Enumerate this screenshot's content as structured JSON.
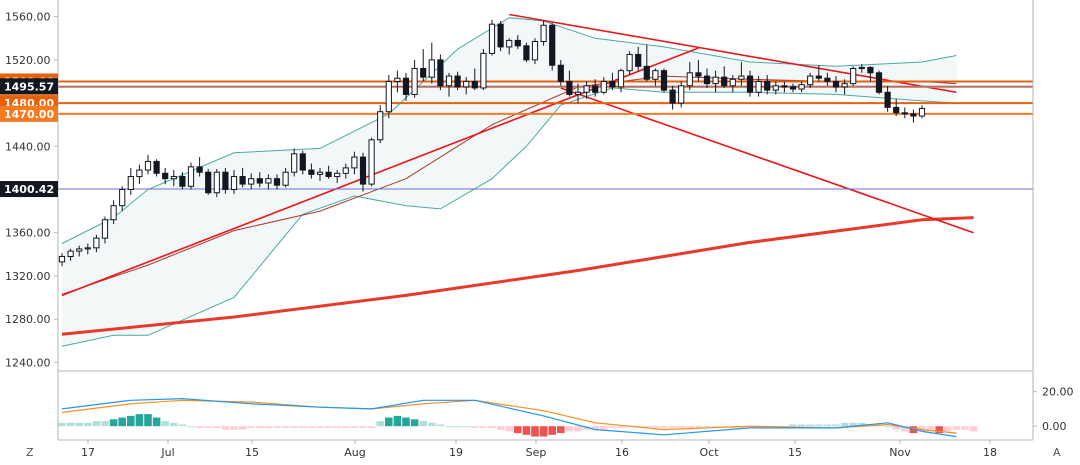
{
  "chart_data": [
    {
      "type": "candlestick",
      "panel": "price",
      "x_ticks": [
        "17",
        "Jul",
        "15",
        "Aug",
        "19",
        "Sep",
        "16",
        "Oct",
        "15",
        "Nov",
        "18"
      ],
      "ylim": [
        1232,
        1568
      ],
      "y_ticks": [
        "1560.00",
        "1520.00",
        "1480.00",
        "1440.00",
        "1400.00",
        "1360.00",
        "1320.00",
        "1280.00",
        "1240.00"
      ],
      "y_tick_values": [
        1560,
        1520,
        1480,
        1440,
        1400,
        1360,
        1320,
        1280,
        1240
      ],
      "candles": [
        {
          "o": 1333,
          "h": 1341,
          "l": 1329,
          "c": 1338
        },
        {
          "o": 1338,
          "h": 1345,
          "l": 1334,
          "c": 1343
        },
        {
          "o": 1343,
          "h": 1348,
          "l": 1338,
          "c": 1345
        },
        {
          "o": 1345,
          "h": 1350,
          "l": 1340,
          "c": 1346
        },
        {
          "o": 1346,
          "h": 1358,
          "l": 1342,
          "c": 1355
        },
        {
          "o": 1355,
          "h": 1375,
          "l": 1350,
          "c": 1372
        },
        {
          "o": 1372,
          "h": 1390,
          "l": 1368,
          "c": 1385
        },
        {
          "o": 1385,
          "h": 1403,
          "l": 1380,
          "c": 1400
        },
        {
          "o": 1400,
          "h": 1420,
          "l": 1395,
          "c": 1412
        },
        {
          "o": 1412,
          "h": 1423,
          "l": 1405,
          "c": 1418
        },
        {
          "o": 1418,
          "h": 1432,
          "l": 1414,
          "c": 1426
        },
        {
          "o": 1426,
          "h": 1428,
          "l": 1412,
          "c": 1415
        },
        {
          "o": 1415,
          "h": 1420,
          "l": 1405,
          "c": 1410
        },
        {
          "o": 1410,
          "h": 1418,
          "l": 1403,
          "c": 1412
        },
        {
          "o": 1412,
          "h": 1416,
          "l": 1400,
          "c": 1403
        },
        {
          "o": 1403,
          "h": 1425,
          "l": 1400,
          "c": 1421
        },
        {
          "o": 1421,
          "h": 1430,
          "l": 1412,
          "c": 1416
        },
        {
          "o": 1416,
          "h": 1419,
          "l": 1395,
          "c": 1397
        },
        {
          "o": 1397,
          "h": 1419,
          "l": 1393,
          "c": 1416
        },
        {
          "o": 1416,
          "h": 1420,
          "l": 1396,
          "c": 1400
        },
        {
          "o": 1400,
          "h": 1418,
          "l": 1396,
          "c": 1412
        },
        {
          "o": 1412,
          "h": 1420,
          "l": 1402,
          "c": 1405
        },
        {
          "o": 1405,
          "h": 1415,
          "l": 1400,
          "c": 1410
        },
        {
          "o": 1410,
          "h": 1416,
          "l": 1402,
          "c": 1406
        },
        {
          "o": 1406,
          "h": 1414,
          "l": 1400,
          "c": 1410
        },
        {
          "o": 1410,
          "h": 1414,
          "l": 1400,
          "c": 1404
        },
        {
          "o": 1404,
          "h": 1420,
          "l": 1402,
          "c": 1416
        },
        {
          "o": 1416,
          "h": 1438,
          "l": 1412,
          "c": 1433
        },
        {
          "o": 1433,
          "h": 1436,
          "l": 1414,
          "c": 1418
        },
        {
          "o": 1418,
          "h": 1424,
          "l": 1410,
          "c": 1414
        },
        {
          "o": 1414,
          "h": 1420,
          "l": 1408,
          "c": 1416
        },
        {
          "o": 1416,
          "h": 1422,
          "l": 1410,
          "c": 1412
        },
        {
          "o": 1412,
          "h": 1418,
          "l": 1406,
          "c": 1415
        },
        {
          "o": 1415,
          "h": 1424,
          "l": 1410,
          "c": 1420
        },
        {
          "o": 1420,
          "h": 1435,
          "l": 1414,
          "c": 1430
        },
        {
          "o": 1430,
          "h": 1434,
          "l": 1398,
          "c": 1405
        },
        {
          "o": 1405,
          "h": 1448,
          "l": 1403,
          "c": 1446
        },
        {
          "o": 1446,
          "h": 1478,
          "l": 1443,
          "c": 1472
        },
        {
          "o": 1472,
          "h": 1506,
          "l": 1466,
          "c": 1500
        },
        {
          "o": 1500,
          "h": 1510,
          "l": 1490,
          "c": 1503
        },
        {
          "o": 1503,
          "h": 1508,
          "l": 1482,
          "c": 1488
        },
        {
          "o": 1488,
          "h": 1520,
          "l": 1485,
          "c": 1512
        },
        {
          "o": 1512,
          "h": 1530,
          "l": 1500,
          "c": 1504
        },
        {
          "o": 1504,
          "h": 1536,
          "l": 1498,
          "c": 1520
        },
        {
          "o": 1520,
          "h": 1525,
          "l": 1492,
          "c": 1496
        },
        {
          "o": 1496,
          "h": 1508,
          "l": 1486,
          "c": 1505
        },
        {
          "o": 1505,
          "h": 1509,
          "l": 1492,
          "c": 1495
        },
        {
          "o": 1495,
          "h": 1504,
          "l": 1488,
          "c": 1500
        },
        {
          "o": 1500,
          "h": 1512,
          "l": 1492,
          "c": 1494
        },
        {
          "o": 1494,
          "h": 1530,
          "l": 1492,
          "c": 1526
        },
        {
          "o": 1526,
          "h": 1557,
          "l": 1524,
          "c": 1553
        },
        {
          "o": 1553,
          "h": 1556,
          "l": 1528,
          "c": 1532
        },
        {
          "o": 1532,
          "h": 1540,
          "l": 1525,
          "c": 1538
        },
        {
          "o": 1538,
          "h": 1543,
          "l": 1530,
          "c": 1533
        },
        {
          "o": 1533,
          "h": 1536,
          "l": 1518,
          "c": 1520
        },
        {
          "o": 1520,
          "h": 1540,
          "l": 1516,
          "c": 1537
        },
        {
          "o": 1537,
          "h": 1556,
          "l": 1533,
          "c": 1552
        },
        {
          "o": 1552,
          "h": 1554,
          "l": 1510,
          "c": 1515
        },
        {
          "o": 1515,
          "h": 1520,
          "l": 1496,
          "c": 1500
        },
        {
          "o": 1500,
          "h": 1510,
          "l": 1486,
          "c": 1488
        },
        {
          "o": 1488,
          "h": 1498,
          "l": 1480,
          "c": 1490
        },
        {
          "o": 1490,
          "h": 1500,
          "l": 1484,
          "c": 1496
        },
        {
          "o": 1496,
          "h": 1502,
          "l": 1486,
          "c": 1490
        },
        {
          "o": 1490,
          "h": 1504,
          "l": 1488,
          "c": 1500
        },
        {
          "o": 1500,
          "h": 1508,
          "l": 1492,
          "c": 1495
        },
        {
          "o": 1495,
          "h": 1512,
          "l": 1490,
          "c": 1510
        },
        {
          "o": 1510,
          "h": 1528,
          "l": 1506,
          "c": 1525
        },
        {
          "o": 1525,
          "h": 1532,
          "l": 1510,
          "c": 1514
        },
        {
          "o": 1514,
          "h": 1534,
          "l": 1500,
          "c": 1502
        },
        {
          "o": 1502,
          "h": 1512,
          "l": 1496,
          "c": 1510
        },
        {
          "o": 1510,
          "h": 1512,
          "l": 1490,
          "c": 1492
        },
        {
          "o": 1492,
          "h": 1496,
          "l": 1474,
          "c": 1480
        },
        {
          "o": 1480,
          "h": 1500,
          "l": 1476,
          "c": 1496
        },
        {
          "o": 1496,
          "h": 1518,
          "l": 1492,
          "c": 1508
        },
        {
          "o": 1508,
          "h": 1520,
          "l": 1500,
          "c": 1505
        },
        {
          "o": 1505,
          "h": 1512,
          "l": 1494,
          "c": 1498
        },
        {
          "o": 1498,
          "h": 1510,
          "l": 1490,
          "c": 1504
        },
        {
          "o": 1504,
          "h": 1514,
          "l": 1494,
          "c": 1496
        },
        {
          "o": 1496,
          "h": 1506,
          "l": 1490,
          "c": 1502
        },
        {
          "o": 1502,
          "h": 1518,
          "l": 1496,
          "c": 1505
        },
        {
          "o": 1505,
          "h": 1510,
          "l": 1486,
          "c": 1490
        },
        {
          "o": 1490,
          "h": 1505,
          "l": 1486,
          "c": 1500
        },
        {
          "o": 1500,
          "h": 1506,
          "l": 1488,
          "c": 1492
        },
        {
          "o": 1492,
          "h": 1500,
          "l": 1488,
          "c": 1496
        },
        {
          "o": 1496,
          "h": 1500,
          "l": 1490,
          "c": 1495
        },
        {
          "o": 1495,
          "h": 1498,
          "l": 1490,
          "c": 1493
        },
        {
          "o": 1493,
          "h": 1500,
          "l": 1490,
          "c": 1497
        },
        {
          "o": 1497,
          "h": 1508,
          "l": 1494,
          "c": 1505
        },
        {
          "o": 1505,
          "h": 1515,
          "l": 1500,
          "c": 1503
        },
        {
          "o": 1503,
          "h": 1508,
          "l": 1496,
          "c": 1500
        },
        {
          "o": 1500,
          "h": 1505,
          "l": 1490,
          "c": 1495
        },
        {
          "o": 1495,
          "h": 1502,
          "l": 1488,
          "c": 1498
        },
        {
          "o": 1498,
          "h": 1514,
          "l": 1496,
          "c": 1512
        },
        {
          "o": 1512,
          "h": 1516,
          "l": 1508,
          "c": 1513
        },
        {
          "o": 1513,
          "h": 1514,
          "l": 1500,
          "c": 1508
        },
        {
          "o": 1508,
          "h": 1510,
          "l": 1488,
          "c": 1490
        },
        {
          "o": 1490,
          "h": 1496,
          "l": 1472,
          "c": 1476
        },
        {
          "o": 1476,
          "h": 1484,
          "l": 1468,
          "c": 1471
        },
        {
          "o": 1471,
          "h": 1476,
          "l": 1466,
          "c": 1470
        },
        {
          "o": 1470,
          "h": 1474,
          "l": 1462,
          "c": 1468
        },
        {
          "o": 1468,
          "h": 1478,
          "l": 1466,
          "c": 1475
        }
      ],
      "horizontal_levels": [
        {
          "value": 1500.0,
          "label": "1500.00",
          "color": "#e8600a"
        },
        {
          "value": 1495.0,
          "label": "1495.00",
          "color": "#f47b20"
        },
        {
          "value": 1480.0,
          "label": "1480.00",
          "color": "#e8600a"
        },
        {
          "value": 1470.0,
          "label": "1470.00",
          "color": "#f47b20"
        },
        {
          "value": 1495.57,
          "label": "1495.57",
          "color": "#131722"
        },
        {
          "value": 1400.42,
          "label": "1400.42",
          "color": "#131722"
        }
      ],
      "trendlines": [
        {
          "from": {
            "bar": 0,
            "value": 1302
          },
          "to": {
            "bar": 74,
            "value": 1531
          }
        },
        {
          "from": {
            "bar": 52,
            "value": 1562
          },
          "to": {
            "bar": 104,
            "value": 1490
          }
        },
        {
          "from": {
            "bar": 58,
            "value": 1494
          },
          "to": {
            "bar": 106,
            "value": 1360
          }
        }
      ],
      "ma_long": [
        [
          0,
          1266
        ],
        [
          20,
          1282
        ],
        [
          40,
          1302
        ],
        [
          60,
          1325
        ],
        [
          80,
          1351
        ],
        [
          100,
          1372
        ],
        [
          106,
          1374
        ]
      ],
      "ma_mid": [
        [
          0,
          1303
        ],
        [
          10,
          1330
        ],
        [
          20,
          1362
        ],
        [
          30,
          1380
        ],
        [
          40,
          1410
        ],
        [
          50,
          1460
        ],
        [
          60,
          1495
        ],
        [
          70,
          1505
        ],
        [
          80,
          1502
        ],
        [
          90,
          1500
        ],
        [
          100,
          1500
        ],
        [
          104,
          1498
        ]
      ],
      "bb_upper": [
        [
          0,
          1350
        ],
        [
          6,
          1374
        ],
        [
          10,
          1400
        ],
        [
          20,
          1434
        ],
        [
          30,
          1438
        ],
        [
          38,
          1470
        ],
        [
          46,
          1530
        ],
        [
          52,
          1559
        ],
        [
          56,
          1556
        ],
        [
          62,
          1540
        ],
        [
          70,
          1532
        ],
        [
          80,
          1518
        ],
        [
          90,
          1514
        ],
        [
          100,
          1518
        ],
        [
          104,
          1524
        ]
      ],
      "bb_lower": [
        [
          0,
          1255
        ],
        [
          6,
          1265
        ],
        [
          10,
          1265
        ],
        [
          20,
          1300
        ],
        [
          28,
          1377
        ],
        [
          34,
          1394
        ],
        [
          40,
          1385
        ],
        [
          44,
          1382
        ],
        [
          50,
          1410
        ],
        [
          54,
          1440
        ],
        [
          58,
          1478
        ],
        [
          64,
          1494
        ],
        [
          70,
          1490
        ],
        [
          80,
          1490
        ],
        [
          90,
          1488
        ],
        [
          100,
          1482
        ],
        [
          104,
          1480
        ]
      ],
      "colors": {
        "up_fill": "#ffffff",
        "down_fill": "#131722",
        "wick": "#131722",
        "ma_long": "#e8392b",
        "ma_mid": "#a8392b",
        "bands": "#4ba9a2",
        "trendline": "#e8171b"
      }
    },
    {
      "type": "macd",
      "panel": "oscillator",
      "ylim": [
        -8,
        32
      ],
      "y_ticks": [
        "20.00",
        "0.00"
      ],
      "y_tick_values": [
        20,
        0
      ],
      "macd": [
        [
          0,
          10
        ],
        [
          8,
          15
        ],
        [
          14,
          16
        ],
        [
          22,
          13
        ],
        [
          30,
          11
        ],
        [
          36,
          10
        ],
        [
          42,
          15
        ],
        [
          48,
          15
        ],
        [
          56,
          6
        ],
        [
          62,
          -2
        ],
        [
          70,
          -5
        ],
        [
          80,
          -1
        ],
        [
          90,
          -1
        ],
        [
          96,
          2
        ],
        [
          100,
          -3
        ],
        [
          104,
          -6
        ]
      ],
      "signal": [
        [
          0,
          8
        ],
        [
          8,
          13
        ],
        [
          14,
          15
        ],
        [
          22,
          14
        ],
        [
          30,
          11
        ],
        [
          36,
          10
        ],
        [
          42,
          13
        ],
        [
          48,
          15
        ],
        [
          56,
          9
        ],
        [
          62,
          2
        ],
        [
          70,
          -2
        ],
        [
          80,
          0
        ],
        [
          90,
          -1
        ],
        [
          96,
          1
        ],
        [
          100,
          -2
        ],
        [
          104,
          -4
        ]
      ],
      "histogram": [
        2,
        2,
        2,
        2,
        3,
        3,
        4,
        5,
        6,
        7,
        7,
        5,
        3,
        2,
        1,
        0,
        -1,
        -1,
        -1,
        -2,
        -2,
        -2,
        -1,
        -1,
        -1,
        -1,
        -1,
        -1,
        -1,
        -1,
        -1,
        -1,
        -1,
        -1,
        -1,
        -1,
        -1,
        3,
        5,
        6,
        5,
        4,
        3,
        2,
        1,
        0,
        0,
        0,
        -1,
        -1,
        -1,
        -2,
        -3,
        -4,
        -5,
        -6,
        -6,
        -5,
        -4,
        -3,
        -3,
        -2,
        -2,
        -2,
        -1,
        -1,
        0,
        0,
        0,
        -1,
        -1,
        -1,
        -1,
        -1,
        -1,
        0,
        0,
        0,
        -1,
        -1,
        -1,
        -1,
        0,
        0,
        0,
        1,
        1,
        1,
        1,
        1,
        1,
        2,
        2,
        2,
        1,
        1,
        0,
        -2,
        -3,
        -4,
        -3,
        -3,
        -4,
        -3,
        -2,
        -2,
        -3
      ],
      "colors": {
        "macd": "#2196f3",
        "signal": "#ff8b1e",
        "hist_up_strong": "#26a69a",
        "hist_up_weak": "#b2dfdb",
        "hist_down_strong": "#ef5350",
        "hist_down_weak": "#ffcdd2"
      }
    }
  ],
  "corner": {
    "left": "Z",
    "right": "A"
  }
}
